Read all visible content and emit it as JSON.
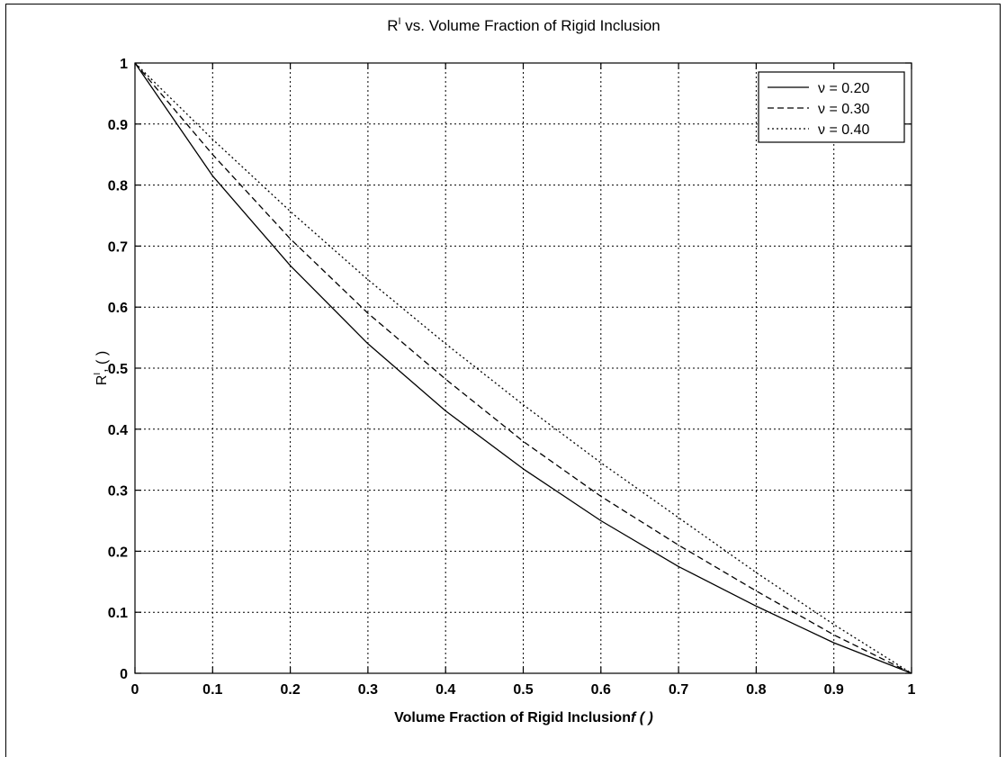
{
  "chart_data": {
    "type": "line",
    "title_main": "R",
    "title_sup": "I",
    "title_rest": " vs. Volume Fraction of Rigid Inclusion",
    "xlabel_main": "Volume Fraction of Rigid Inclusion",
    "xlabel_italic": "f ( )",
    "ylabel_main": "R",
    "ylabel_sup": "I",
    "ylabel_rest": ", ( )",
    "xlim": [
      0,
      1
    ],
    "ylim": [
      0,
      1
    ],
    "grid": true,
    "legend_position": "top-right",
    "xticks": [
      "0",
      "0.1",
      "0.2",
      "0.3",
      "0.4",
      "0.5",
      "0.6",
      "0.7",
      "0.8",
      "0.9",
      "1"
    ],
    "yticks": [
      "0",
      "0.1",
      "0.2",
      "0.3",
      "0.4",
      "0.5",
      "0.6",
      "0.7",
      "0.8",
      "0.9",
      "1"
    ],
    "x": [
      0,
      0.1,
      0.2,
      0.3,
      0.4,
      0.5,
      0.6,
      0.7,
      0.8,
      0.9,
      1.0
    ],
    "series": [
      {
        "name": "ν = 0.20",
        "style": "solid",
        "values": [
          1.0,
          0.815,
          0.668,
          0.54,
          0.43,
          0.335,
          0.25,
          0.175,
          0.11,
          0.05,
          0.0
        ]
      },
      {
        "name": "ν = 0.30",
        "style": "dashed",
        "values": [
          1.0,
          0.85,
          0.712,
          0.59,
          0.482,
          0.38,
          0.29,
          0.21,
          0.135,
          0.063,
          0.0
        ]
      },
      {
        "name": "ν = 0.40",
        "style": "dashdot",
        "values": [
          1.0,
          0.875,
          0.757,
          0.645,
          0.54,
          0.44,
          0.345,
          0.255,
          0.165,
          0.08,
          0.0
        ]
      }
    ]
  }
}
